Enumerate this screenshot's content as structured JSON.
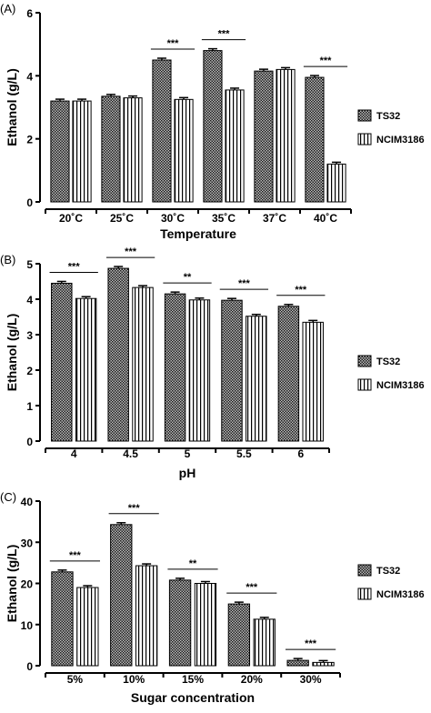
{
  "chart_data": [
    {
      "type": "bar",
      "panel_label": "(A)",
      "categories": [
        "20˚C",
        "25˚C",
        "30˚C",
        "35˚C",
        "37˚C",
        "40˚C"
      ],
      "series": [
        {
          "name": "TS32",
          "values": [
            3.2,
            3.35,
            4.5,
            4.8,
            4.15,
            3.95
          ]
        },
        {
          "name": "NCIM3186",
          "values": [
            3.2,
            3.3,
            3.25,
            3.55,
            4.2,
            1.2
          ]
        }
      ],
      "significance": [
        "",
        "",
        "***",
        "***",
        "",
        "***"
      ],
      "xlabel": "Temperature",
      "ylabel": "Ethanol (g/L)",
      "ylim": [
        0,
        6
      ],
      "yticks": [
        0,
        2,
        4,
        6
      ],
      "legend_position": "right",
      "grid": false
    },
    {
      "type": "bar",
      "panel_label": "(B)",
      "categories": [
        "4",
        "4.5",
        "5",
        "5.5",
        "6"
      ],
      "series": [
        {
          "name": "TS32",
          "values": [
            4.45,
            4.87,
            4.15,
            3.97,
            3.8
          ]
        },
        {
          "name": "NCIM3186",
          "values": [
            4.02,
            4.33,
            3.98,
            3.52,
            3.35
          ]
        }
      ],
      "significance": [
        "***",
        "***",
        "**",
        "***",
        "***"
      ],
      "xlabel": "pH",
      "ylabel": "Ethanol (g/L)",
      "ylim": [
        0,
        5
      ],
      "yticks": [
        0,
        1,
        2,
        3,
        4,
        5
      ],
      "legend_position": "right",
      "grid": false
    },
    {
      "type": "bar",
      "panel_label": "(C)",
      "categories": [
        "5%",
        "10%",
        "15%",
        "20%",
        "30%"
      ],
      "series": [
        {
          "name": "TS32",
          "values": [
            22.8,
            34.3,
            20.8,
            15.0,
            1.3
          ]
        },
        {
          "name": "NCIM3186",
          "values": [
            19.0,
            24.3,
            20.0,
            11.3,
            0.8
          ]
        }
      ],
      "significance": [
        "***",
        "***",
        "**",
        "***",
        "***"
      ],
      "xlabel": "Sugar concentration",
      "ylabel": "Ethanol (g/L)",
      "ylim": [
        0,
        40
      ],
      "yticks": [
        0,
        10,
        20,
        30,
        40
      ],
      "legend_position": "right",
      "grid": false
    }
  ],
  "colors": {
    "axis": "#000000",
    "ts32_fill": "crosshatch-dark",
    "ncim_fill": "vertical-stripes"
  },
  "legend_icons": [
    "crosshatch-swatch-icon",
    "vertical-stripes-swatch-icon"
  ]
}
